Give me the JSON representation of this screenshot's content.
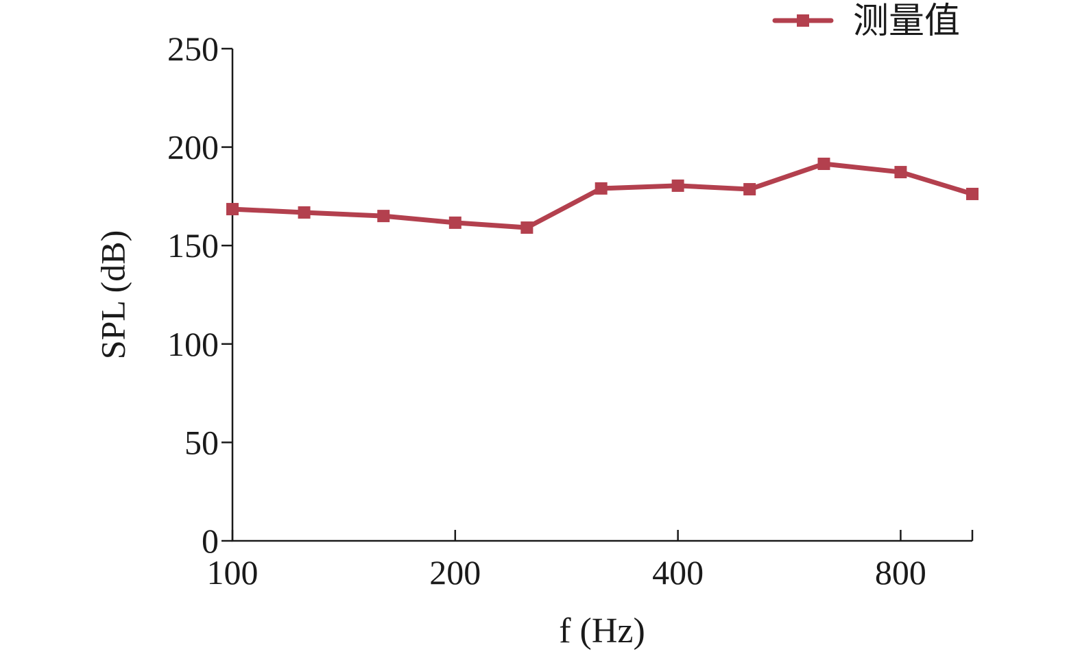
{
  "chart_data": {
    "type": "line",
    "x_label": "f (Hz)",
    "y_label": "SPL (dB)",
    "x": [
      100,
      125,
      160,
      200,
      250,
      315,
      400,
      500,
      630,
      800,
      1000
    ],
    "series": [
      {
        "name": "测量值",
        "color": "#b3404e",
        "values": [
          168.5,
          166.8,
          165,
          161.6,
          159.1,
          179,
          180.4,
          178.6,
          191.5,
          187.3,
          176.2
        ]
      }
    ],
    "xscale": "log",
    "xlim": [
      100,
      1000
    ],
    "xticks": [
      100,
      200,
      400,
      800
    ],
    "ylim": [
      0,
      250
    ],
    "yticks": [
      0,
      50,
      100,
      150,
      200,
      250
    ],
    "legend": "top right"
  }
}
